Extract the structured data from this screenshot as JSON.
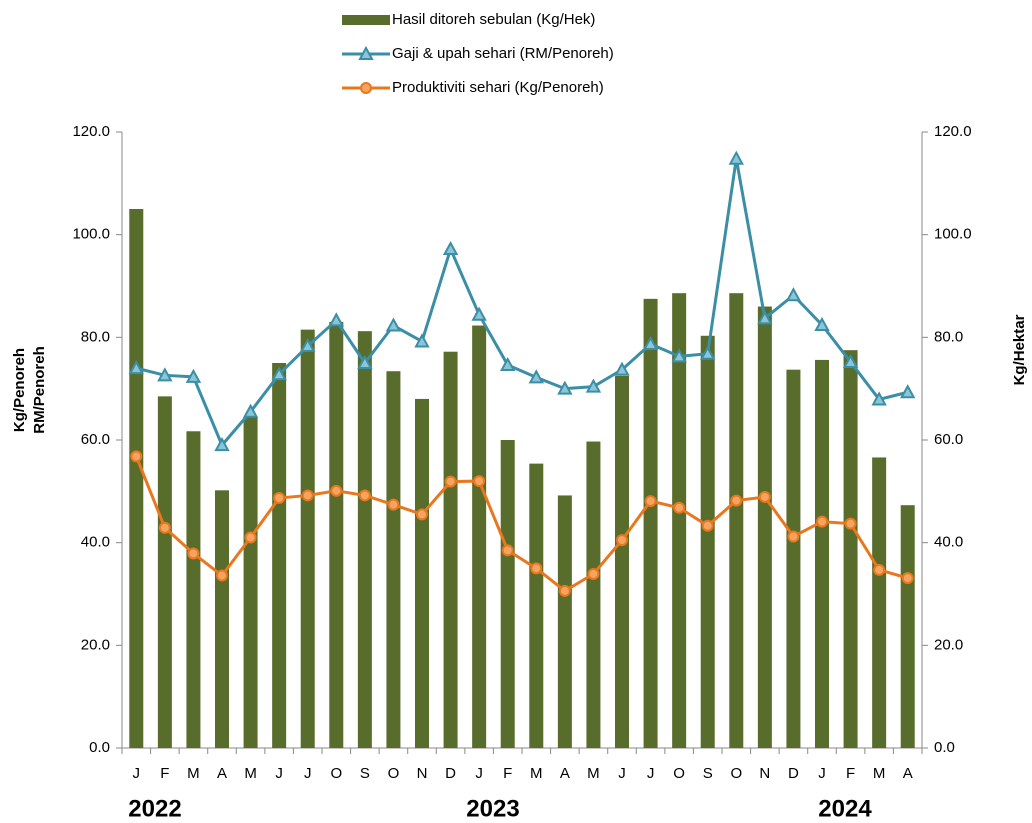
{
  "chart_data": {
    "type": "bar_line",
    "categories": [
      "J",
      "F",
      "M",
      "A",
      "M",
      "J",
      "J",
      "O",
      "S",
      "O",
      "N",
      "D",
      "J",
      "F",
      "M",
      "A",
      "M",
      "J",
      "J",
      "O",
      "S",
      "O",
      "N",
      "D",
      "J",
      "F",
      "M",
      "A"
    ],
    "series": [
      {
        "name": "Hasil ditoreh sebulan (Kg/Hek)",
        "type": "bar",
        "axis": "y2",
        "color": "#586d2b",
        "values": [
          105,
          68.5,
          61.7,
          50.2,
          64.5,
          75,
          81.5,
          83,
          81.2,
          73.4,
          68,
          77.2,
          82.3,
          60,
          55.4,
          49.2,
          59.7,
          72.5,
          87.5,
          88.6,
          80.3,
          88.6,
          86,
          73.7,
          75.6,
          77.5,
          56.6,
          47.3
        ]
      },
      {
        "name": "Gaji & upah sehari (RM/Penoreh)",
        "type": "line",
        "marker": "triangle",
        "color": "#3a8ea6",
        "values": [
          74,
          72.6,
          72.3,
          59,
          65.5,
          72.8,
          78.3,
          83.3,
          75,
          82.3,
          79.2,
          97.2,
          84.4,
          74.6,
          72.2,
          70,
          70.4,
          73.7,
          78.7,
          76.3,
          76.8,
          114.8,
          83.7,
          88.2,
          82.4,
          75.2,
          67.9,
          69.3
        ]
      },
      {
        "name": "Produktiviti sehari (Kg/Penoreh)",
        "type": "line",
        "marker": "circle",
        "color": "#e8771e",
        "values": [
          56.8,
          42.9,
          37.9,
          33.6,
          41,
          48.7,
          49.2,
          50.1,
          49.2,
          47.4,
          45.5,
          51.9,
          52,
          38.5,
          35,
          30.6,
          33.9,
          40.5,
          48.1,
          46.8,
          43.3,
          48.2,
          48.9,
          41.2,
          44.1,
          43.7,
          34.7,
          33.1
        ]
      }
    ],
    "ylabel": [
      "Kg/Penoreh",
      "RM/Penoreh"
    ],
    "y2label": "Kg/Hektar",
    "annotations": [
      "2022",
      "2023",
      "2024"
    ],
    "ylim": [
      0,
      120
    ],
    "yticks": [
      {
        "value": 0,
        "label": "0.0"
      },
      {
        "value": 20,
        "label": "20.0"
      },
      {
        "value": 40,
        "label": "40.0"
      },
      {
        "value": 60,
        "label": "60.0"
      },
      {
        "value": 80,
        "label": "80.0"
      },
      {
        "value": 100,
        "label": "100.0"
      },
      {
        "value": 120,
        "label": "120.0"
      }
    ],
    "y2lim": [
      0,
      120
    ],
    "y2ticks": [
      {
        "value": 0,
        "label": "0.0"
      },
      {
        "value": 20,
        "label": "20.0"
      },
      {
        "value": 40,
        "label": "40.0"
      },
      {
        "value": 60,
        "label": "60.0"
      },
      {
        "value": 80,
        "label": "80.0"
      },
      {
        "value": 100,
        "label": "100.0"
      },
      {
        "value": 120,
        "label": "120.0"
      }
    ],
    "legend": "top"
  }
}
